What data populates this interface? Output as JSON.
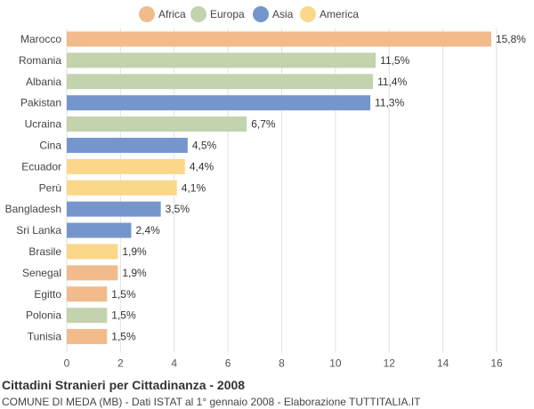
{
  "chart_data": {
    "type": "bar",
    "orientation": "horizontal",
    "title": "Cittadini Stranieri per Cittadinanza - 2008",
    "subtitle": "COMUNE DI MEDA (MB) - Dati ISTAT al 1° gennaio 2008 - Elaborazione TUTTITALIA.IT",
    "legend": [
      {
        "name": "Africa",
        "color": "#f2bb8b"
      },
      {
        "name": "Europa",
        "color": "#c2d3ad"
      },
      {
        "name": "Asia",
        "color": "#7596cc"
      },
      {
        "name": "America",
        "color": "#fbd78a"
      }
    ],
    "legend_placement": "top-center",
    "categories": [
      "Marocco",
      "Romania",
      "Albania",
      "Pakistan",
      "Ucraina",
      "Cina",
      "Ecuador",
      "Perù",
      "Bangladesh",
      "Sri Lanka",
      "Brasile",
      "Senegal",
      "Egitto",
      "Polonia",
      "Tunisia"
    ],
    "values": [
      15.8,
      11.5,
      11.4,
      11.3,
      6.7,
      4.5,
      4.4,
      4.1,
      3.5,
      2.4,
      1.9,
      1.9,
      1.5,
      1.5,
      1.5
    ],
    "value_labels": [
      "15,8%",
      "11,5%",
      "11,4%",
      "11,3%",
      "6,7%",
      "4,5%",
      "4,4%",
      "4,1%",
      "3,5%",
      "2,4%",
      "1,9%",
      "1,9%",
      "1,5%",
      "1,5%",
      "1,5%"
    ],
    "groups": [
      "Africa",
      "Europa",
      "Europa",
      "Asia",
      "Europa",
      "Asia",
      "America",
      "America",
      "Asia",
      "Asia",
      "America",
      "Africa",
      "Africa",
      "Europa",
      "Africa"
    ],
    "xlim": [
      0,
      16
    ],
    "xticks": [
      0,
      2,
      4,
      6,
      8,
      10,
      12,
      14,
      16
    ],
    "grid": "vertical"
  }
}
